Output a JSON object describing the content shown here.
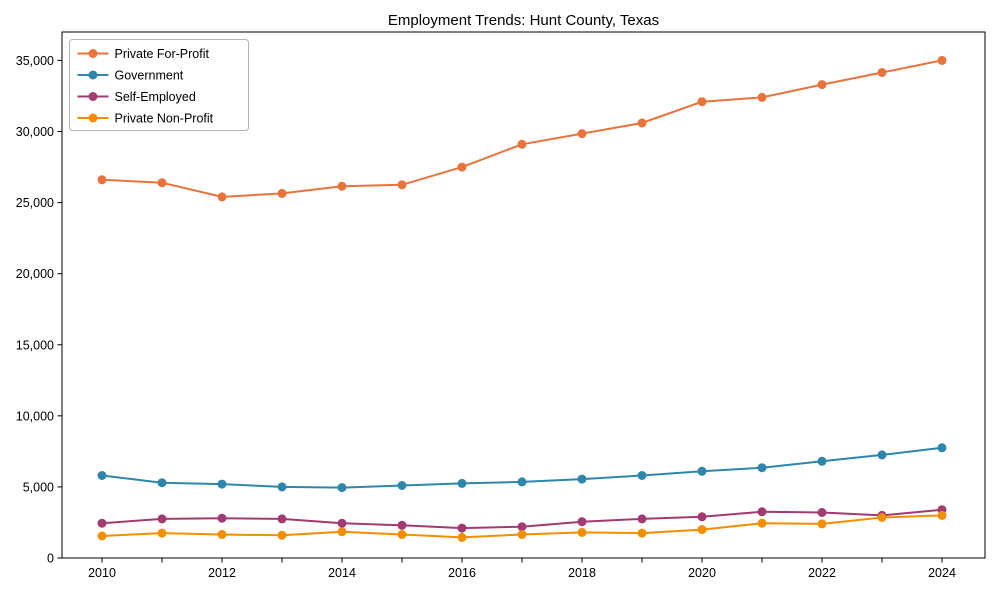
{
  "chart_data": {
    "type": "line",
    "title": "Employment Trends: Hunt County, Texas",
    "xlabel": "",
    "ylabel": "",
    "grid": false,
    "legend_position": "top-left",
    "x": [
      2010,
      2011,
      2012,
      2013,
      2014,
      2015,
      2016,
      2017,
      2018,
      2019,
      2020,
      2021,
      2022,
      2023,
      2024
    ],
    "x_tick_labels": [
      "2010",
      "2012",
      "2014",
      "2016",
      "2018",
      "2020",
      "2022",
      "2024"
    ],
    "ylim": [
      0,
      37000
    ],
    "yticks": [
      0,
      5000,
      10000,
      15000,
      20000,
      25000,
      30000,
      35000
    ],
    "series": [
      {
        "name": "Private For-Profit",
        "color": "#E8743B",
        "values": [
          26600,
          26400,
          25400,
          25650,
          26150,
          26250,
          27500,
          29100,
          29850,
          30600,
          32100,
          32400,
          33300,
          34150,
          35000
        ]
      },
      {
        "name": "Government",
        "color": "#2E86AB",
        "values": [
          5800,
          5300,
          5200,
          5000,
          4950,
          5100,
          5250,
          5350,
          5550,
          5800,
          6100,
          6350,
          6800,
          7250,
          7750
        ]
      },
      {
        "name": "Self-Employed",
        "color": "#A23B72",
        "values": [
          2450,
          2750,
          2800,
          2750,
          2450,
          2300,
          2100,
          2200,
          2550,
          2750,
          2900,
          3250,
          3200,
          3000,
          3400
        ]
      },
      {
        "name": "Private Non-Profit",
        "color": "#F18F01",
        "values": [
          1550,
          1750,
          1650,
          1600,
          1850,
          1650,
          1450,
          1650,
          1800,
          1750,
          2000,
          2450,
          2400,
          2850,
          3000
        ]
      }
    ],
    "axis_color": "#000000",
    "legend_border_color": "#b3b3b3",
    "background_color": "#ffffff"
  }
}
